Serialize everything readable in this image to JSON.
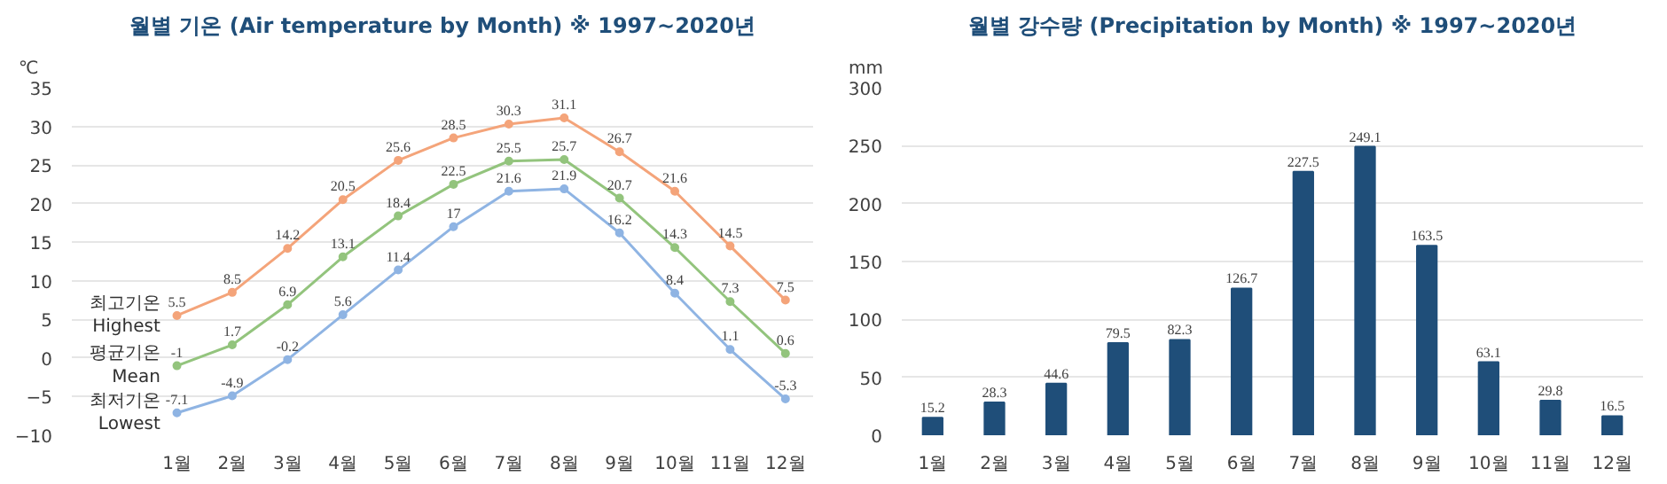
{
  "chart_data": [
    {
      "type": "line",
      "title": "월별 기온 (Air temperature by Month) ※ 1997~2020년",
      "ylabel": "℃",
      "categories": [
        "1월",
        "2월",
        "3월",
        "4월",
        "5월",
        "6월",
        "7월",
        "8월",
        "9월",
        "10월",
        "11월",
        "12월"
      ],
      "series": [
        {
          "name": "최고기온 Highest",
          "color": "#f4a47a",
          "values": [
            5.5,
            8.5,
            14.2,
            20.5,
            25.6,
            28.5,
            30.3,
            31.1,
            26.7,
            21.6,
            14.5,
            7.5
          ]
        },
        {
          "name": "평균기온 Mean",
          "color": "#93c47d",
          "values": [
            -1,
            1.7,
            6.9,
            13.1,
            18.4,
            22.5,
            25.5,
            25.7,
            20.7,
            14.3,
            7.3,
            0.6
          ]
        },
        {
          "name": "최저기온 Lowest",
          "color": "#8fb4e3",
          "values": [
            -7.1,
            -4.9,
            -0.2,
            5.6,
            11.4,
            17,
            21.6,
            21.9,
            16.2,
            8.4,
            1.1,
            -5.3
          ]
        }
      ],
      "ylim": [
        -10,
        35
      ],
      "yticks": [
        -10,
        -5,
        0,
        5,
        10,
        15,
        20,
        25,
        30,
        35
      ],
      "grid": "y",
      "legend": false,
      "marker": "circle",
      "line_style": "solid",
      "data_labels": true
    },
    {
      "type": "bar",
      "title": "월별 강수량 (Precipitation by Month) ※ 1997~2020년",
      "ylabel": "mm",
      "categories": [
        "1월",
        "2월",
        "3월",
        "4월",
        "5월",
        "6월",
        "7월",
        "8월",
        "9월",
        "10월",
        "11월",
        "12월"
      ],
      "values": [
        15.2,
        28.3,
        44.6,
        79.5,
        82.3,
        126.7,
        227.5,
        249.1,
        163.5,
        63.1,
        29.8,
        16.5
      ],
      "color": "#1f4e79",
      "ylim": [
        0,
        300
      ],
      "yticks": [
        0,
        50,
        100,
        150,
        200,
        250,
        300
      ],
      "grid": "y",
      "data_labels": true
    }
  ]
}
